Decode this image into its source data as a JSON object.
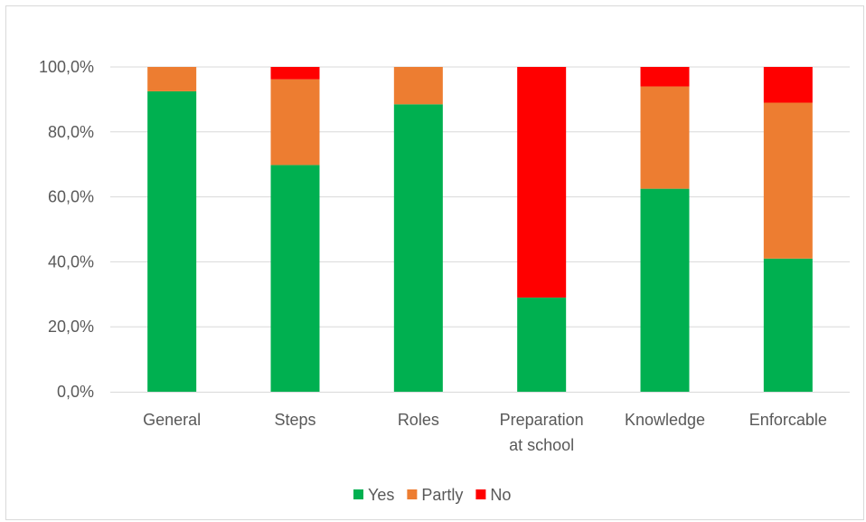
{
  "chart_data": {
    "type": "bar",
    "stacked": true,
    "categories": [
      [
        "General"
      ],
      [
        "Steps"
      ],
      [
        "Roles"
      ],
      [
        "Preparation",
        "at school"
      ],
      [
        "Knowledge"
      ],
      [
        "Enforcable"
      ]
    ],
    "series": [
      {
        "name": "Yes",
        "color": "#00b050",
        "values": [
          92.5,
          69.8,
          88.5,
          29.0,
          62.5,
          41.0
        ]
      },
      {
        "name": "Partly",
        "color": "#ed7d31",
        "values": [
          7.5,
          26.4,
          11.5,
          0.0,
          31.5,
          48.0
        ]
      },
      {
        "name": "No",
        "color": "#ff0000",
        "values": [
          0.0,
          3.8,
          0.0,
          71.0,
          6.0,
          11.0
        ]
      }
    ],
    "ylim": [
      0,
      100
    ],
    "yticks": [
      "0,0%",
      "20,0%",
      "40,0%",
      "60,0%",
      "80,0%",
      "100,0%"
    ],
    "grid": true,
    "legend_position": "bottom",
    "title": "",
    "xlabel": "",
    "ylabel": ""
  }
}
